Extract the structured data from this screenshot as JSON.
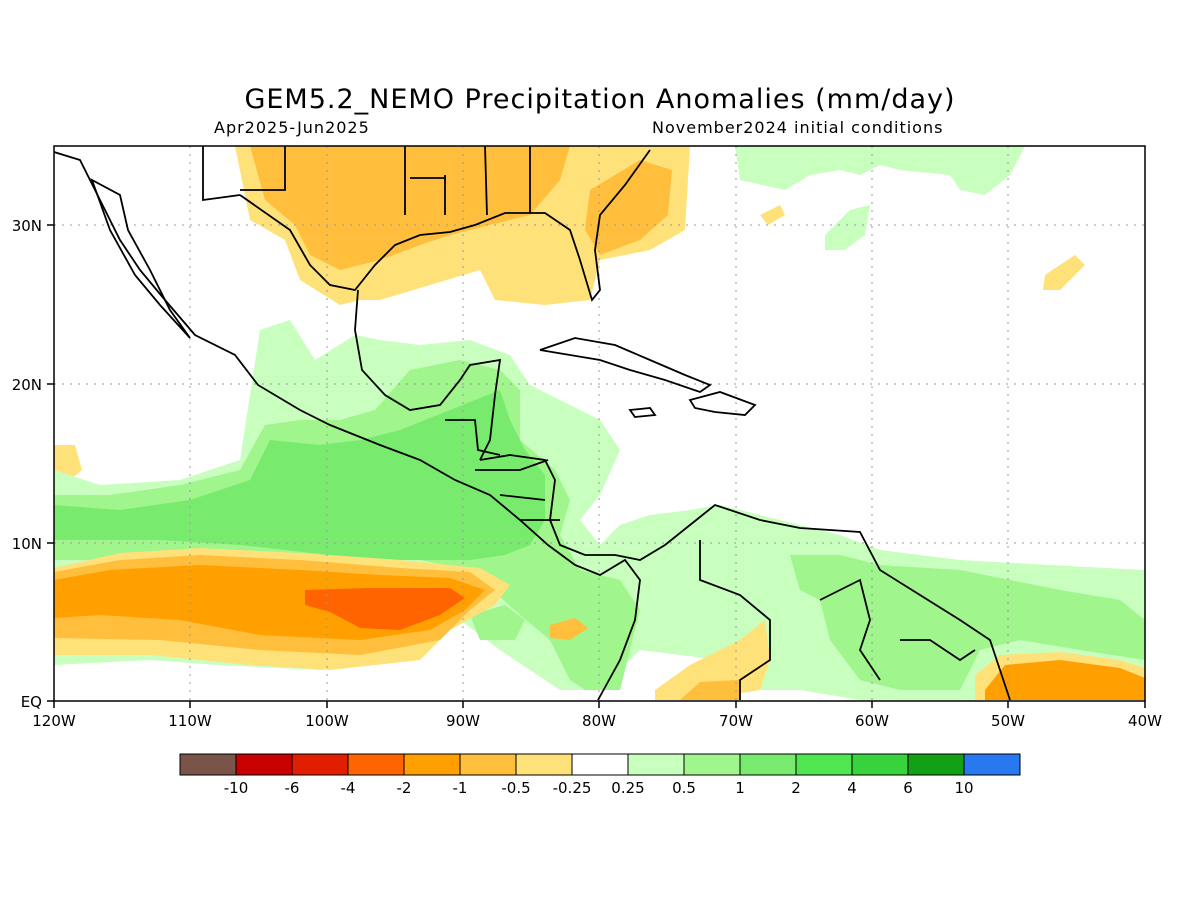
{
  "title": "GEM5.2_NEMO Precipitation Anomalies (mm/day)",
  "period": "Apr2025-Jun2025",
  "init": "November2024 initial conditions",
  "map": {
    "lon_range": [
      -120,
      -40
    ],
    "lat_range": [
      0,
      35
    ],
    "x_ticks": [
      "120W",
      "110W",
      "100W",
      "90W",
      "80W",
      "70W",
      "60W",
      "50W",
      "40W"
    ],
    "y_ticks": [
      "EQ",
      "10N",
      "20N",
      "30N"
    ],
    "grid": "dotted",
    "land_outline": "coastlines and country borders"
  },
  "colorbar": {
    "labels": [
      "-10",
      "-6",
      "-4",
      "-2",
      "-1",
      "-0.5",
      "-0.25",
      "0.25",
      "0.5",
      "1",
      "2",
      "4",
      "6",
      "10"
    ],
    "colors": [
      "#7a5448",
      "#c80000",
      "#e01e00",
      "#ff6400",
      "#ffa000",
      "#ffbe3c",
      "#ffe17a",
      "#ffffff",
      "#c8ffbe",
      "#a0f58c",
      "#78eb6e",
      "#50e650",
      "#37d23c",
      "#14a014",
      "#2878f0"
    ]
  },
  "colors": {
    "dry_strong": "#ff6400",
    "dry": "#ffa000",
    "dry_mod": "#ffbe3c",
    "dry_weak": "#ffe17a",
    "wet_weak": "#c8ffbe",
    "wet": "#a0f58c",
    "wet_mod": "#78eb6e",
    "coast": "#000000"
  }
}
